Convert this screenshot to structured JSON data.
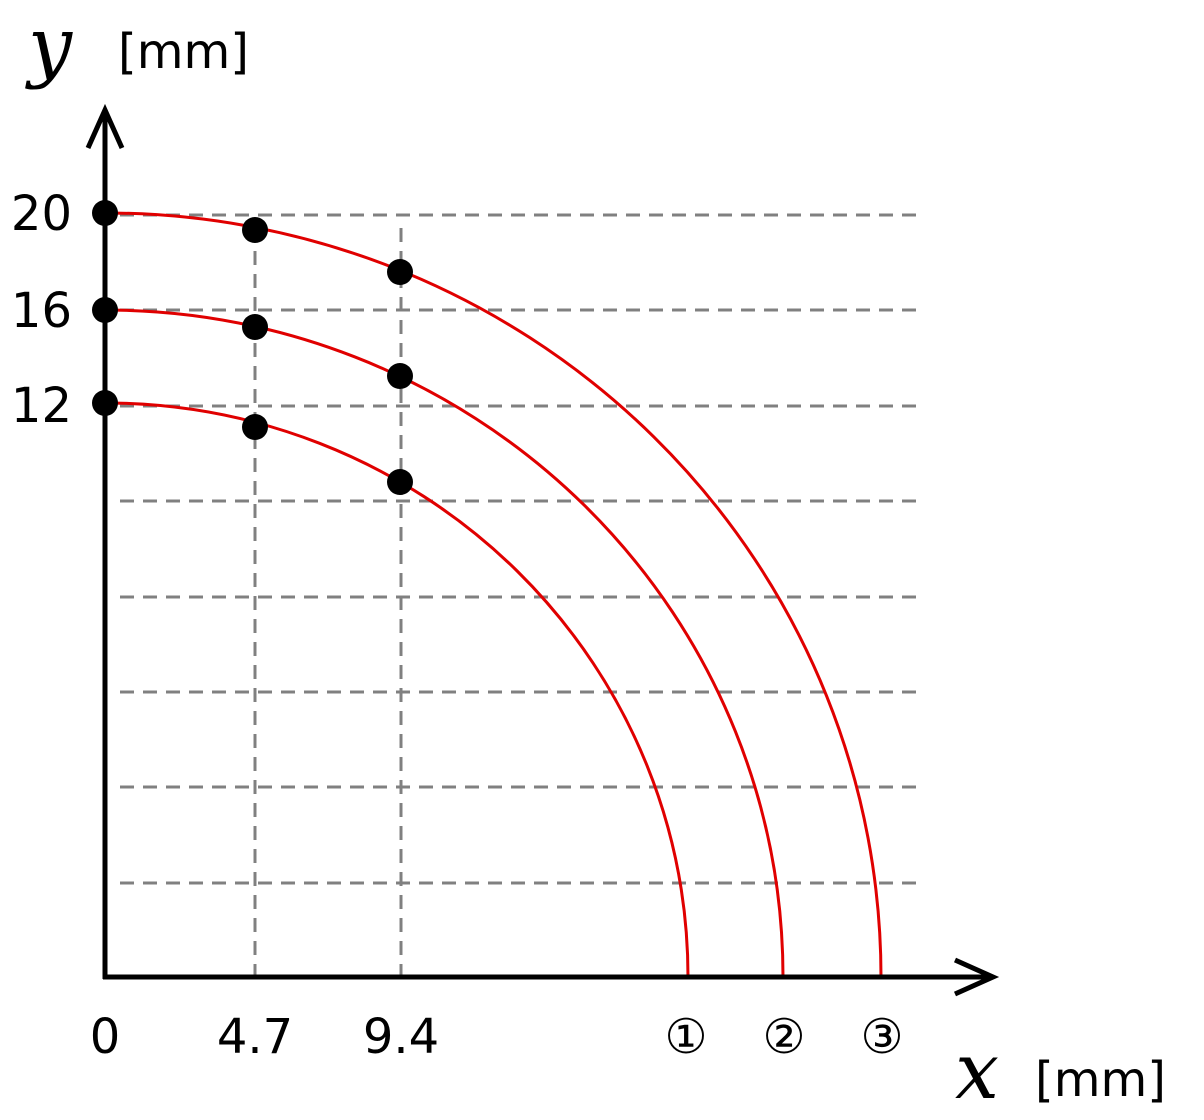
{
  "axes": {
    "y": {
      "variable": "y",
      "unit": "[mm]",
      "tick_labels": [
        "20",
        "16",
        "12"
      ]
    },
    "x": {
      "variable": "x",
      "unit": "[mm]",
      "tick_labels": [
        "0",
        "4.7",
        "9.4"
      ]
    }
  },
  "curve_labels": [
    "①",
    "②",
    "③"
  ]
}
